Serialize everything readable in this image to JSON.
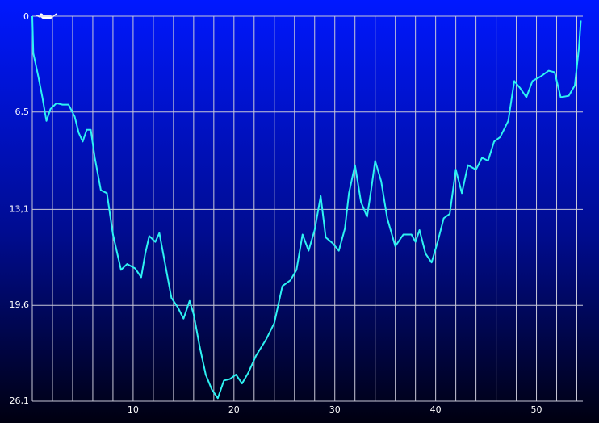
{
  "chart_data": {
    "type": "line",
    "x": [
      0,
      0.1,
      0.6,
      1.0,
      1.4,
      1.8,
      2.4,
      3.0,
      3.6,
      4.2,
      4.6,
      5.0,
      5.4,
      5.8,
      6.2,
      6.8,
      7.4,
      8.0,
      8.8,
      9.4,
      10.2,
      10.8,
      11.2,
      11.6,
      12.2,
      12.6,
      13.2,
      13.8,
      14.4,
      15.0,
      15.6,
      16.0,
      16.6,
      17.2,
      17.8,
      18.4,
      19.0,
      19.6,
      20.2,
      20.8,
      21.4,
      22.2,
      23.2,
      24.0,
      24.8,
      25.6,
      26.2,
      26.8,
      27.4,
      28.0,
      28.6,
      29.1,
      29.8,
      30.4,
      31.0,
      31.4,
      32.0,
      32.6,
      33.2,
      33.6,
      34.0,
      34.6,
      35.2,
      36.0,
      36.8,
      37.6,
      38.0,
      38.4,
      39.0,
      39.6,
      40.2,
      40.8,
      41.4,
      42.0,
      42.6,
      43.2,
      44.0,
      44.6,
      45.2,
      45.8,
      46.4,
      47.2,
      47.8,
      48.4,
      49.0,
      49.6,
      50.4,
      51.2,
      51.8,
      52.4,
      53.2,
      53.8,
      54.2,
      54.4
    ],
    "series": [
      {
        "color": "#2ef2f2",
        "values": [
          0,
          2.5,
          4.1,
          5.5,
          7.1,
          6.3,
          5.9,
          6.0,
          6.0,
          6.8,
          7.9,
          8.5,
          7.7,
          7.7,
          9.6,
          11.8,
          12.0,
          14.8,
          17.2,
          16.8,
          17.1,
          17.7,
          16.1,
          14.9,
          15.3,
          14.7,
          16.9,
          19.1,
          19.7,
          20.5,
          19.3,
          20.2,
          22.4,
          24.3,
          25.3,
          25.9,
          24.7,
          24.6,
          24.3,
          24.9,
          24.2,
          23.0,
          21.9,
          20.8,
          18.3,
          17.9,
          17.2,
          14.8,
          15.9,
          14.5,
          12.2,
          15.0,
          15.4,
          15.9,
          14.4,
          12.0,
          10.1,
          12.6,
          13.6,
          11.8,
          9.8,
          11.2,
          13.7,
          15.6,
          14.8,
          14.8,
          15.3,
          14.5,
          16.1,
          16.7,
          15.3,
          13.7,
          13.4,
          10.4,
          12.0,
          10.1,
          10.4,
          9.6,
          9.8,
          8.5,
          8.2,
          7.1,
          4.4,
          4.9,
          5.5,
          4.4,
          4.1,
          3.7,
          3.8,
          5.5,
          5.4,
          4.7,
          2.2,
          0.3
        ]
      }
    ],
    "xlim": [
      0,
      54.6
    ],
    "xticks": [
      10,
      20,
      30,
      40,
      50
    ],
    "xgrid": [
      2,
      4,
      6,
      8,
      10,
      12,
      14,
      16,
      18,
      20,
      22,
      24,
      26,
      28,
      30,
      32,
      34,
      36,
      38,
      40,
      42,
      44,
      46,
      48,
      50,
      52,
      54
    ],
    "ylim": [
      0,
      26.1
    ],
    "y_reversed": true,
    "yticks": [
      0,
      {
        "value": 6.5,
        "label": "6,5"
      },
      {
        "value": 13.1,
        "label": "13,1"
      },
      {
        "value": 19.6,
        "label": "19,6"
      },
      {
        "value": 26.1,
        "label": "26,1"
      }
    ],
    "grid": true
  }
}
